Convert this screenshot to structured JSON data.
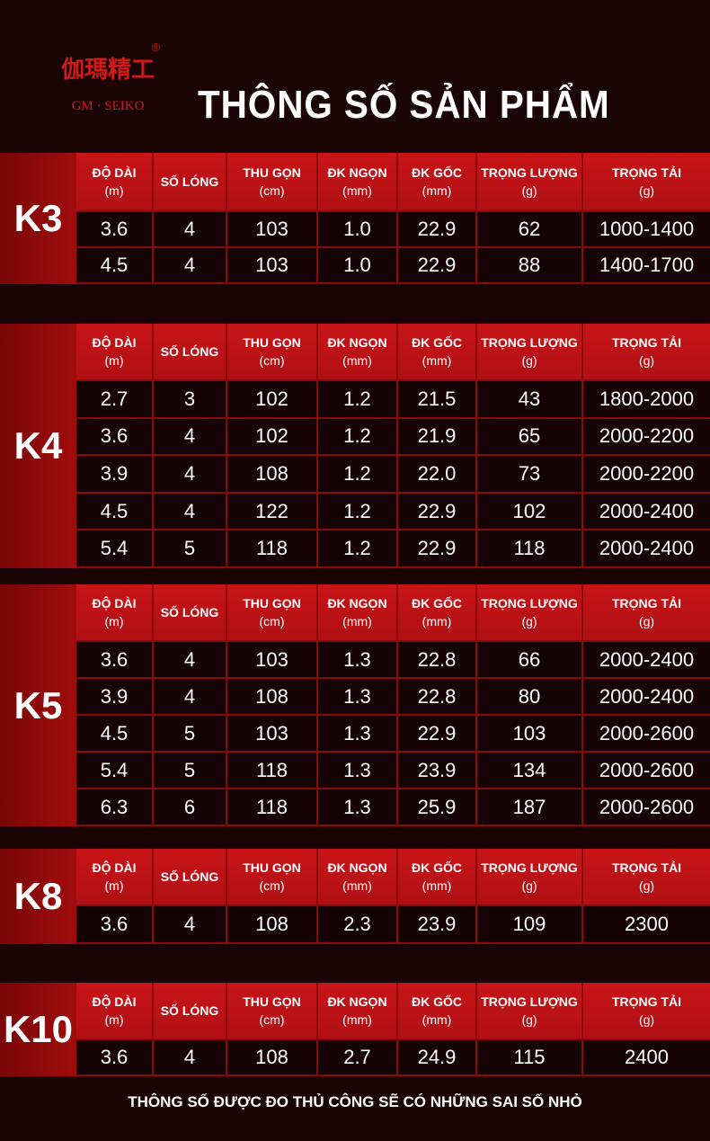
{
  "logo": {
    "glyph": "伽瑪精工",
    "brand": "GM · SEIKO",
    "reg": "®"
  },
  "title": "THÔNG SỐ SẢN PHẨM",
  "headers": [
    [
      "ĐỘ DÀI",
      "(m)"
    ],
    [
      "SỐ LÓNG",
      ""
    ],
    [
      "THU GỌN",
      "(cm)"
    ],
    [
      "ĐK NGỌN",
      "(mm)"
    ],
    [
      "ĐK GỐC",
      "(mm)"
    ],
    [
      "TRỌNG LƯỢNG",
      "(g)"
    ],
    [
      "TRỌNG TẢI",
      "(g)"
    ]
  ],
  "sections": [
    {
      "model": "K3",
      "rows": [
        [
          "3.6",
          "4",
          "103",
          "1.0",
          "22.9",
          "62",
          "1000-1400"
        ],
        [
          "4.5",
          "4",
          "103",
          "1.0",
          "22.9",
          "88",
          "1400-1700"
        ]
      ]
    },
    {
      "model": "K4",
      "rows": [
        [
          "2.7",
          "3",
          "102",
          "1.2",
          "21.5",
          "43",
          "1800-2000"
        ],
        [
          "3.6",
          "4",
          "102",
          "1.2",
          "21.9",
          "65",
          "2000-2200"
        ],
        [
          "3.9",
          "4",
          "108",
          "1.2",
          "22.0",
          "73",
          "2000-2200"
        ],
        [
          "4.5",
          "4",
          "122",
          "1.2",
          "22.9",
          "102",
          "2000-2400"
        ],
        [
          "5.4",
          "5",
          "118",
          "1.2",
          "22.9",
          "118",
          "2000-2400"
        ]
      ]
    },
    {
      "model": "K5",
      "rows": [
        [
          "3.6",
          "4",
          "103",
          "1.3",
          "22.8",
          "66",
          "2000-2400"
        ],
        [
          "3.9",
          "4",
          "108",
          "1.3",
          "22.8",
          "80",
          "2000-2400"
        ],
        [
          "4.5",
          "5",
          "103",
          "1.3",
          "22.9",
          "103",
          "2000-2600"
        ],
        [
          "5.4",
          "5",
          "118",
          "1.3",
          "23.9",
          "134",
          "2000-2600"
        ],
        [
          "6.3",
          "6",
          "118",
          "1.3",
          "25.9",
          "187",
          "2000-2600"
        ]
      ]
    },
    {
      "model": "K8",
      "rows": [
        [
          "3.6",
          "4",
          "108",
          "2.3",
          "23.9",
          "109",
          "2300"
        ]
      ]
    },
    {
      "model": "K10",
      "rows": [
        [
          "3.6",
          "4",
          "108",
          "2.7",
          "24.9",
          "115",
          "2400"
        ]
      ]
    }
  ],
  "footer": "THÔNG SỐ ĐƯỢC ĐO THỦ CÔNG SẼ CÓ NHỮNG SAI SỐ NHỎ"
}
